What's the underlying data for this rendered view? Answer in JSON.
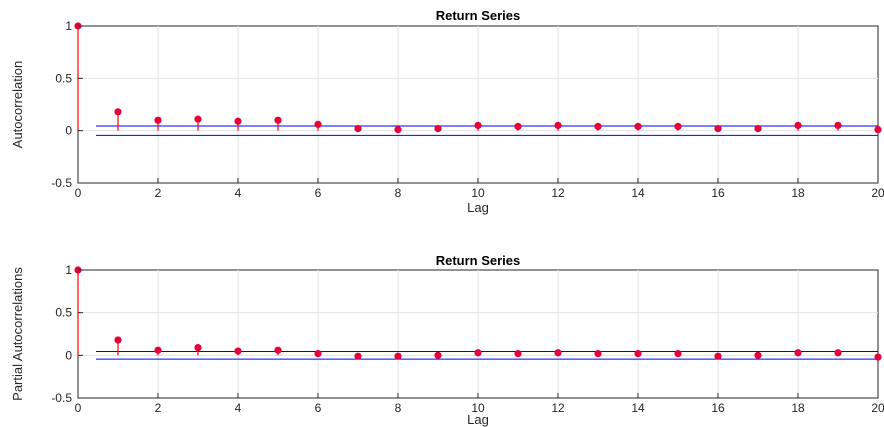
{
  "colors": {
    "stem": "#ff0000",
    "marker": "#e8003a",
    "confidence_bound": "#0000ff",
    "zero_line": "#0000ff"
  },
  "chart_data": [
    {
      "type": "stem",
      "title": "Return Series",
      "xlabel": "Lag",
      "ylabel": "Autocorrelation",
      "xlim": [
        0,
        20
      ],
      "ylim": [
        -0.5,
        1
      ],
      "xticks": [
        "0",
        "2",
        "4",
        "6",
        "8",
        "10",
        "12",
        "14",
        "16",
        "18",
        "20"
      ],
      "yticks": [
        "-0.5",
        "0",
        "0.5",
        "1"
      ],
      "grid": true,
      "x": [
        0,
        1,
        2,
        3,
        4,
        5,
        6,
        7,
        8,
        9,
        10,
        11,
        12,
        13,
        14,
        15,
        16,
        17,
        18,
        19,
        20
      ],
      "values": [
        1.0,
        0.18,
        0.1,
        0.11,
        0.09,
        0.1,
        0.06,
        0.02,
        0.01,
        0.02,
        0.05,
        0.04,
        0.05,
        0.04,
        0.04,
        0.04,
        0.02,
        0.02,
        0.05,
        0.05,
        0.01
      ],
      "confidence_bounds": [
        0.045,
        -0.045
      ]
    },
    {
      "type": "stem",
      "title": "Return Series",
      "xlabel": "Lag",
      "ylabel": "Partial Autocorrelations",
      "xlim": [
        0,
        20
      ],
      "ylim": [
        -0.5,
        1
      ],
      "xticks": [
        "0",
        "2",
        "4",
        "6",
        "8",
        "10",
        "12",
        "14",
        "16",
        "18",
        "20"
      ],
      "yticks": [
        "-0.5",
        "0",
        "0.5",
        "1"
      ],
      "grid": true,
      "x": [
        0,
        1,
        2,
        3,
        4,
        5,
        6,
        7,
        8,
        9,
        10,
        11,
        12,
        13,
        14,
        15,
        16,
        17,
        18,
        19,
        20
      ],
      "values": [
        1.0,
        0.18,
        0.06,
        0.09,
        0.05,
        0.06,
        0.02,
        -0.01,
        -0.01,
        0.0,
        0.03,
        0.02,
        0.03,
        0.02,
        0.02,
        0.02,
        -0.01,
        0.0,
        0.03,
        0.03,
        -0.02
      ],
      "confidence_bounds": [
        0.045,
        -0.045
      ]
    }
  ]
}
